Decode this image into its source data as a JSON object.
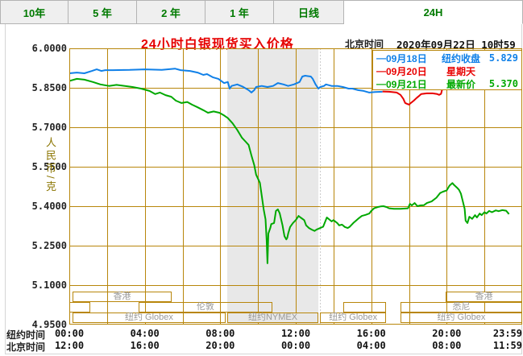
{
  "tabs": [
    {
      "label": "10年",
      "active": false
    },
    {
      "label": "5 年",
      "active": false
    },
    {
      "label": "2 年",
      "active": false
    },
    {
      "label": "1 年",
      "active": false
    },
    {
      "label": "日线",
      "active": false
    },
    {
      "label": "24H",
      "active": true
    }
  ],
  "header": {
    "title": "24小时白银现货买入价格",
    "time_label": "北京时间",
    "datetime": "2020年09月22日 10时59分"
  },
  "legend": [
    {
      "date": "09月18日",
      "label": "纽约收盘",
      "value": "5.829",
      "color": "#1080E8"
    },
    {
      "date": "09月20日",
      "label": "星期天",
      "value": "",
      "color": "#E80000"
    },
    {
      "date": "09月21日",
      "label": "最新价",
      "value": "5.370",
      "color": "#00A800"
    }
  ],
  "y_axis": {
    "unit": "人民币/克",
    "ticks": [
      "6.0000",
      "5.8500",
      "5.7000",
      "5.5500",
      "5.4000",
      "5.2500",
      "5.1000",
      "4.9500"
    ]
  },
  "x_axis": {
    "rows": [
      {
        "label": "纽约时间",
        "ticks": [
          "00:00",
          "04:00",
          "08:00",
          "12:00",
          "16:00",
          "20:00",
          "23:59"
        ]
      },
      {
        "label": "北京时间",
        "ticks": [
          "12:00",
          "16:00",
          "20:00",
          "00:00",
          "04:00",
          "08:00",
          "11:59"
        ]
      }
    ]
  },
  "sessions": [
    {
      "row": 0,
      "from": 0.17,
      "to": 5.42,
      "label": "香港",
      "highlight": false
    },
    {
      "row": 0,
      "from": 19.94,
      "to": 24,
      "label": "香港",
      "highlight": false
    },
    {
      "row": 1,
      "from": 0,
      "to": 1.1,
      "label": "",
      "highlight": false
    },
    {
      "row": 1,
      "from": 3.67,
      "to": 10.76,
      "label": "伦敦",
      "highlight": false
    },
    {
      "row": 1,
      "from": 14.5,
      "to": 16.8,
      "label": "",
      "highlight": false
    },
    {
      "row": 1,
      "from": 17.55,
      "to": 24,
      "label": "悉尼",
      "highlight": false
    },
    {
      "row": 2,
      "from": 0.17,
      "to": 8.28,
      "label": "纽约 Globex",
      "highlight": false
    },
    {
      "row": 2,
      "from": 8.37,
      "to": 13.2,
      "label": "纽约NYMEX",
      "highlight": true
    },
    {
      "row": 2,
      "from": 13.28,
      "to": 16.8,
      "label": "纽约 Globex",
      "highlight": false
    },
    {
      "row": 2,
      "from": 17.55,
      "to": 24,
      "label": "纽约 Globex",
      "highlight": false
    }
  ],
  "colors": {
    "grid": "#B8860B",
    "band": "#E8E8E8",
    "title_red": "#E60000",
    "tab_green": "#007A00",
    "session_text": "#999999",
    "blue": "#1080E8",
    "red": "#E80000",
    "green": "#00A800"
  },
  "chart_data": {
    "type": "line",
    "title": "24小时白银现货买入价格",
    "xlabel": "纽约时间 00:00-23:59 (hours)",
    "ylabel": "人民币/克",
    "xlim": [
      0,
      24
    ],
    "ylim": [
      4.95,
      6.0
    ],
    "y_ticks": [
      6.0,
      5.85,
      5.7,
      5.55,
      5.4,
      5.25,
      5.1,
      4.95
    ],
    "grid": true,
    "legend_position": "top-right",
    "band": {
      "from": 8.37,
      "to": 13.2,
      "label": "纽约NYMEX"
    },
    "series": [
      {
        "name": "09月18日 纽约收盘 5.829",
        "color": "#1080E8",
        "close": 5.829,
        "points": [
          [
            0,
            5.905
          ],
          [
            0.4,
            5.908
          ],
          [
            0.8,
            5.905
          ],
          [
            1.2,
            5.914
          ],
          [
            1.45,
            5.92
          ],
          [
            1.7,
            5.914
          ],
          [
            1.9,
            5.917
          ],
          [
            2.3,
            5.917
          ],
          [
            3.2,
            5.918
          ],
          [
            4,
            5.92
          ],
          [
            4.9,
            5.918
          ],
          [
            5.6,
            5.923
          ],
          [
            5.9,
            5.917
          ],
          [
            6.4,
            5.914
          ],
          [
            6.8,
            5.908
          ],
          [
            7.1,
            5.899
          ],
          [
            7.3,
            5.902
          ],
          [
            7.6,
            5.89
          ],
          [
            7.9,
            5.884
          ],
          [
            8.2,
            5.868
          ],
          [
            8.4,
            5.872
          ],
          [
            8.5,
            5.847
          ],
          [
            8.6,
            5.857
          ],
          [
            8.9,
            5.863
          ],
          [
            9.2,
            5.854
          ],
          [
            9.5,
            5.841
          ],
          [
            9.65,
            5.832
          ],
          [
            9.8,
            5.841
          ],
          [
            9.9,
            5.853
          ],
          [
            10.2,
            5.857
          ],
          [
            10.5,
            5.853
          ],
          [
            10.8,
            5.857
          ],
          [
            11.05,
            5.868
          ],
          [
            11.35,
            5.863
          ],
          [
            11.6,
            5.857
          ],
          [
            11.9,
            5.863
          ],
          [
            12.2,
            5.872
          ],
          [
            12.35,
            5.893
          ],
          [
            12.5,
            5.896
          ],
          [
            12.8,
            5.893
          ],
          [
            12.9,
            5.884
          ],
          [
            13.05,
            5.863
          ],
          [
            13.2,
            5.847
          ],
          [
            13.3,
            5.853
          ],
          [
            13.5,
            5.857
          ],
          [
            13.6,
            5.863
          ],
          [
            13.9,
            5.857
          ],
          [
            14.2,
            5.857
          ],
          [
            14.5,
            5.853
          ],
          [
            14.8,
            5.847
          ],
          [
            15,
            5.847
          ],
          [
            15.3,
            5.841
          ],
          [
            15.6,
            5.838
          ],
          [
            15.9,
            5.832
          ],
          [
            16.2,
            5.834
          ],
          [
            16.6,
            5.835
          ]
        ]
      },
      {
        "name": "09月20日 星期天",
        "color": "#E80000",
        "points": [
          [
            16.6,
            5.836
          ],
          [
            16.95,
            5.835
          ],
          [
            17.35,
            5.832
          ],
          [
            17.55,
            5.823
          ],
          [
            17.7,
            5.808
          ],
          [
            17.8,
            5.792
          ],
          [
            18,
            5.786
          ],
          [
            18.1,
            5.792
          ],
          [
            18.25,
            5.801
          ],
          [
            18.4,
            5.811
          ],
          [
            18.55,
            5.82
          ],
          [
            18.65,
            5.826
          ],
          [
            18.95,
            5.829
          ],
          [
            19.25,
            5.829
          ],
          [
            19.5,
            5.826
          ],
          [
            19.6,
            5.823
          ],
          [
            19.7,
            5.827
          ],
          [
            19.77,
            5.847
          ],
          [
            19.85,
            5.863
          ],
          [
            19.95,
            5.868
          ],
          [
            20.05,
            5.87
          ],
          [
            20.35,
            5.868
          ],
          [
            20.65,
            5.87
          ],
          [
            21.1,
            5.866
          ],
          [
            21.5,
            5.868
          ],
          [
            21.95,
            5.866
          ],
          [
            22.4,
            5.863
          ],
          [
            22.7,
            5.866
          ],
          [
            22.95,
            5.863
          ],
          [
            23.25,
            5.865
          ],
          [
            23.5,
            5.863
          ],
          [
            23.8,
            5.864
          ],
          [
            24,
            5.864
          ]
        ]
      },
      {
        "name": "09月21日 最新价 5.370",
        "color": "#00A800",
        "last": 5.37,
        "points": [
          [
            0,
            5.876
          ],
          [
            0.4,
            5.884
          ],
          [
            0.8,
            5.881
          ],
          [
            1.25,
            5.872
          ],
          [
            1.65,
            5.863
          ],
          [
            2.1,
            5.857
          ],
          [
            2.5,
            5.861
          ],
          [
            2.95,
            5.857
          ],
          [
            3.35,
            5.853
          ],
          [
            3.8,
            5.847
          ],
          [
            4.25,
            5.838
          ],
          [
            4.55,
            5.826
          ],
          [
            4.8,
            5.832
          ],
          [
            5.1,
            5.822
          ],
          [
            5.4,
            5.816
          ],
          [
            5.65,
            5.801
          ],
          [
            5.95,
            5.792
          ],
          [
            6.25,
            5.796
          ],
          [
            6.5,
            5.786
          ],
          [
            6.8,
            5.776
          ],
          [
            7.1,
            5.765
          ],
          [
            7.35,
            5.755
          ],
          [
            7.65,
            5.76
          ],
          [
            7.95,
            5.755
          ],
          [
            8.2,
            5.745
          ],
          [
            8.4,
            5.735
          ],
          [
            8.65,
            5.715
          ],
          [
            8.9,
            5.69
          ],
          [
            9.15,
            5.66
          ],
          [
            9.35,
            5.645
          ],
          [
            9.5,
            5.633
          ],
          [
            9.65,
            5.593
          ],
          [
            9.8,
            5.556
          ],
          [
            9.9,
            5.52
          ],
          [
            10.1,
            5.489
          ],
          [
            10.2,
            5.44
          ],
          [
            10.3,
            5.388
          ],
          [
            10.4,
            5.35
          ],
          [
            10.46,
            5.27
          ],
          [
            10.5,
            5.183
          ],
          [
            10.55,
            5.296
          ],
          [
            10.65,
            5.317
          ],
          [
            10.7,
            5.332
          ],
          [
            10.85,
            5.336
          ],
          [
            10.95,
            5.382
          ],
          [
            11.05,
            5.388
          ],
          [
            11.15,
            5.373
          ],
          [
            11.2,
            5.357
          ],
          [
            11.3,
            5.327
          ],
          [
            11.35,
            5.306
          ],
          [
            11.4,
            5.286
          ],
          [
            11.5,
            5.274
          ],
          [
            11.55,
            5.28
          ],
          [
            11.6,
            5.296
          ],
          [
            11.7,
            5.321
          ],
          [
            11.85,
            5.336
          ],
          [
            12,
            5.347
          ],
          [
            12.15,
            5.363
          ],
          [
            12.25,
            5.357
          ],
          [
            12.45,
            5.347
          ],
          [
            12.55,
            5.327
          ],
          [
            12.7,
            5.317
          ],
          [
            12.85,
            5.311
          ],
          [
            13,
            5.306
          ],
          [
            13.1,
            5.311
          ],
          [
            13.3,
            5.317
          ],
          [
            13.45,
            5.322
          ],
          [
            13.65,
            5.357
          ],
          [
            13.9,
            5.342
          ],
          [
            14,
            5.347
          ],
          [
            14.2,
            5.336
          ],
          [
            14.3,
            5.327
          ],
          [
            14.45,
            5.33
          ],
          [
            14.6,
            5.321
          ],
          [
            14.75,
            5.317
          ],
          [
            14.85,
            5.321
          ],
          [
            15.05,
            5.336
          ],
          [
            15.3,
            5.352
          ],
          [
            15.5,
            5.363
          ],
          [
            15.7,
            5.367
          ],
          [
            15.9,
            5.372
          ],
          [
            16,
            5.382
          ],
          [
            16.15,
            5.392
          ],
          [
            16.35,
            5.397
          ],
          [
            16.5,
            5.399
          ],
          [
            16.65,
            5.4
          ],
          [
            16.8,
            5.397
          ],
          [
            16.95,
            5.392
          ],
          [
            17.2,
            5.39
          ],
          [
            17.55,
            5.39
          ],
          [
            17.8,
            5.391
          ],
          [
            17.95,
            5.392
          ],
          [
            18.05,
            5.409
          ],
          [
            18.15,
            5.403
          ],
          [
            18.3,
            5.412
          ],
          [
            18.45,
            5.4
          ],
          [
            18.6,
            5.403
          ],
          [
            18.8,
            5.404
          ],
          [
            18.95,
            5.412
          ],
          [
            19.2,
            5.418
          ],
          [
            19.45,
            5.432
          ],
          [
            19.65,
            5.45
          ],
          [
            19.8,
            5.455
          ],
          [
            20,
            5.46
          ],
          [
            20.15,
            5.478
          ],
          [
            20.3,
            5.488
          ],
          [
            20.4,
            5.48
          ],
          [
            20.55,
            5.47
          ],
          [
            20.65,
            5.462
          ],
          [
            20.75,
            5.448
          ],
          [
            20.85,
            5.42
          ],
          [
            20.95,
            5.39
          ],
          [
            21,
            5.345
          ],
          [
            21.1,
            5.336
          ],
          [
            21.2,
            5.36
          ],
          [
            21.35,
            5.352
          ],
          [
            21.5,
            5.366
          ],
          [
            21.6,
            5.357
          ],
          [
            21.75,
            5.372
          ],
          [
            21.85,
            5.366
          ],
          [
            22,
            5.377
          ],
          [
            22.1,
            5.372
          ],
          [
            22.25,
            5.382
          ],
          [
            22.4,
            5.377
          ],
          [
            22.6,
            5.384
          ],
          [
            22.75,
            5.381
          ],
          [
            22.95,
            5.385
          ],
          [
            23.15,
            5.383
          ],
          [
            23.3,
            5.37
          ]
        ]
      }
    ]
  }
}
